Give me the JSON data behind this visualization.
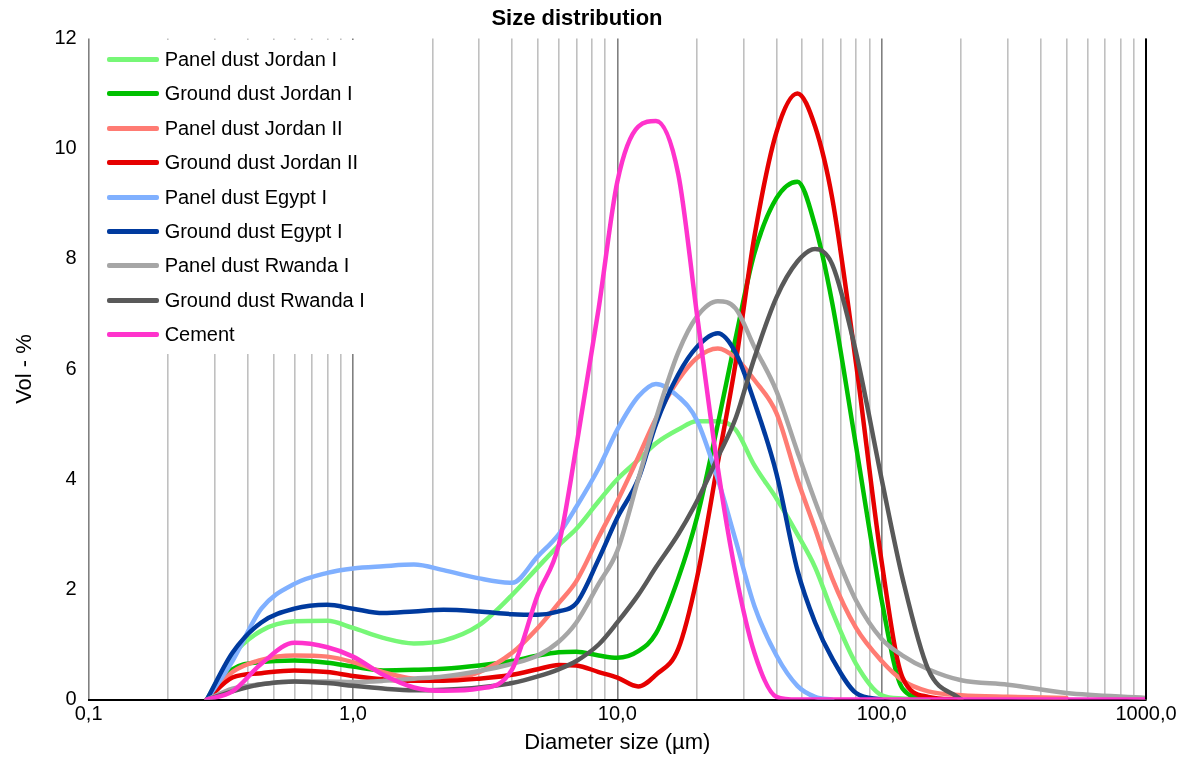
{
  "chart_data": {
    "type": "line",
    "title": "Size distribution",
    "xlabel": "Diameter size (µm)",
    "ylabel": "Vol - %",
    "x": [
      0.28,
      0.35,
      0.45,
      0.6,
      0.8,
      1,
      1.3,
      1.7,
      2.2,
      3,
      4,
      5,
      6,
      7,
      8.5,
      10,
      12,
      14,
      17,
      20,
      24,
      28,
      33,
      40,
      48,
      56,
      65,
      80,
      100,
      120,
      150,
      200,
      300,
      500,
      1000
    ],
    "series": [
      {
        "name": "Panel dust Jordan I",
        "color": "#77f777",
        "values": [
          0,
          0.8,
          1.25,
          1.42,
          1.43,
          1.3,
          1.12,
          1.02,
          1.07,
          1.35,
          1.9,
          2.4,
          2.8,
          3.1,
          3.6,
          4.0,
          4.35,
          4.65,
          4.9,
          5.05,
          5.05,
          4.9,
          4.25,
          3.65,
          3.0,
          2.4,
          1.6,
          0.65,
          0.08,
          0.02,
          0,
          null,
          null,
          null,
          null
        ]
      },
      {
        "name": "Ground dust Jordan I",
        "color": "#00c000",
        "values": [
          0,
          0.55,
          0.68,
          0.71,
          0.67,
          0.6,
          0.53,
          0.54,
          0.56,
          0.62,
          0.7,
          0.8,
          0.86,
          0.87,
          0.8,
          0.76,
          0.88,
          1.2,
          2.2,
          3.3,
          5.0,
          6.55,
          8.1,
          9.1,
          9.4,
          8.6,
          7.2,
          4.6,
          1.8,
          0.2,
          0,
          null,
          null,
          null,
          null
        ]
      },
      {
        "name": "Panel dust Jordan II",
        "color": "#ff7b73",
        "values": [
          0,
          0.5,
          0.72,
          0.8,
          0.78,
          0.68,
          0.5,
          0.38,
          0.36,
          0.5,
          0.85,
          1.3,
          1.75,
          2.15,
          2.95,
          3.6,
          4.4,
          5.1,
          5.8,
          6.2,
          6.37,
          6.2,
          5.8,
          5.2,
          4.0,
          3.1,
          2.2,
          1.3,
          0.7,
          0.35,
          0.15,
          0.08,
          0.05,
          0.03,
          null
        ]
      },
      {
        "name": "Ground dust Jordan II",
        "color": "#e60000",
        "values": [
          0,
          0.4,
          0.48,
          0.53,
          0.5,
          0.43,
          0.37,
          0.34,
          0.34,
          0.38,
          0.45,
          0.55,
          0.63,
          0.62,
          0.5,
          0.4,
          0.24,
          0.45,
          0.92,
          2.2,
          4.3,
          6.1,
          8.4,
          10.3,
          11.0,
          10.4,
          9.1,
          6.1,
          2.5,
          0.4,
          0.05,
          0,
          null,
          null,
          null
        ]
      },
      {
        "name": "Panel dust Egypt I",
        "color": "#80b0ff",
        "values": [
          0,
          0.7,
          1.65,
          2.1,
          2.3,
          2.38,
          2.42,
          2.45,
          2.35,
          2.2,
          2.12,
          2.6,
          3.0,
          3.5,
          4.2,
          4.9,
          5.5,
          5.73,
          5.5,
          5.07,
          4.0,
          2.9,
          1.7,
          0.8,
          0.25,
          0.05,
          0,
          null,
          null,
          null,
          null,
          null,
          null,
          null,
          null
        ]
      },
      {
        "name": "Ground dust Egypt I",
        "color": "#003a9e",
        "values": [
          0,
          0.85,
          1.4,
          1.65,
          1.72,
          1.65,
          1.57,
          1.6,
          1.63,
          1.6,
          1.55,
          1.54,
          1.6,
          1.75,
          2.55,
          3.3,
          4.0,
          5.0,
          5.9,
          6.4,
          6.65,
          6.3,
          5.4,
          4.1,
          2.35,
          1.4,
          0.75,
          0.12,
          0,
          null,
          null,
          null,
          null,
          null,
          null
        ]
      },
      {
        "name": "Panel dust Rwanda I",
        "color": "#a6a6a6",
        "values": [
          0,
          0.2,
          0.28,
          0.33,
          0.33,
          0.32,
          0.34,
          0.38,
          0.42,
          0.52,
          0.65,
          0.8,
          1.05,
          1.4,
          2.1,
          2.7,
          4.0,
          5.1,
          6.3,
          6.95,
          7.23,
          7.1,
          6.4,
          5.6,
          4.5,
          3.6,
          2.8,
          1.8,
          1.1,
          0.8,
          0.55,
          0.35,
          0.27,
          0.12,
          0.03
        ]
      },
      {
        "name": "Ground dust Rwanda I",
        "color": "#595959",
        "values": [
          0,
          0.15,
          0.28,
          0.33,
          0.3,
          0.25,
          0.2,
          0.17,
          0.18,
          0.22,
          0.3,
          0.42,
          0.55,
          0.7,
          1.0,
          1.4,
          1.9,
          2.4,
          3.0,
          3.6,
          4.4,
          5.1,
          6.2,
          7.3,
          7.95,
          8.18,
          7.9,
          6.3,
          4.0,
          2.2,
          0.55,
          0,
          null,
          null,
          null
        ]
      },
      {
        "name": "Cement",
        "color": "#ff33cc",
        "values": [
          0,
          0.15,
          0.65,
          1.03,
          0.95,
          0.78,
          0.45,
          0.22,
          0.16,
          0.2,
          0.55,
          1.9,
          2.8,
          4.6,
          7.1,
          9.4,
          10.4,
          10.5,
          9.54,
          7.0,
          4.2,
          2.3,
          0.85,
          0.05,
          0,
          0,
          0,
          0,
          0,
          0,
          0,
          0,
          0,
          0,
          0
        ]
      }
    ],
    "log": "x",
    "xlim": [
      0.1,
      1000
    ],
    "xticks": [
      {
        "value": 0.1,
        "label": "0,1"
      },
      {
        "value": 0.2,
        "label": null
      },
      {
        "value": 0.3,
        "label": null
      },
      {
        "value": 0.4,
        "label": null
      },
      {
        "value": 0.5,
        "label": null
      },
      {
        "value": 0.6,
        "label": null
      },
      {
        "value": 0.7,
        "label": null
      },
      {
        "value": 0.8,
        "label": null
      },
      {
        "value": 0.9,
        "label": null
      },
      {
        "value": 1,
        "label": "1,0"
      },
      {
        "value": 2,
        "label": null
      },
      {
        "value": 3,
        "label": null
      },
      {
        "value": 4,
        "label": null
      },
      {
        "value": 5,
        "label": null
      },
      {
        "value": 6,
        "label": null
      },
      {
        "value": 7,
        "label": null
      },
      {
        "value": 8,
        "label": null
      },
      {
        "value": 9,
        "label": null
      },
      {
        "value": 10,
        "label": "10,0"
      },
      {
        "value": 20,
        "label": null
      },
      {
        "value": 30,
        "label": null
      },
      {
        "value": 40,
        "label": null
      },
      {
        "value": 50,
        "label": null
      },
      {
        "value": 60,
        "label": null
      },
      {
        "value": 70,
        "label": null
      },
      {
        "value": 80,
        "label": null
      },
      {
        "value": 90,
        "label": null
      },
      {
        "value": 100,
        "label": "100,0"
      },
      {
        "value": 200,
        "label": null
      },
      {
        "value": 300,
        "label": null
      },
      {
        "value": 400,
        "label": null
      },
      {
        "value": 500,
        "label": null
      },
      {
        "value": 600,
        "label": null
      },
      {
        "value": 700,
        "label": null
      },
      {
        "value": 800,
        "label": null
      },
      {
        "value": 900,
        "label": null
      },
      {
        "value": 1000,
        "label": "1000,0"
      }
    ],
    "ylim": [
      0,
      12
    ],
    "yticks": [
      0,
      2,
      4,
      6,
      8,
      10,
      12
    ],
    "grid": "x",
    "legend": "top left",
    "marker": "none",
    "line_style": "solid"
  }
}
